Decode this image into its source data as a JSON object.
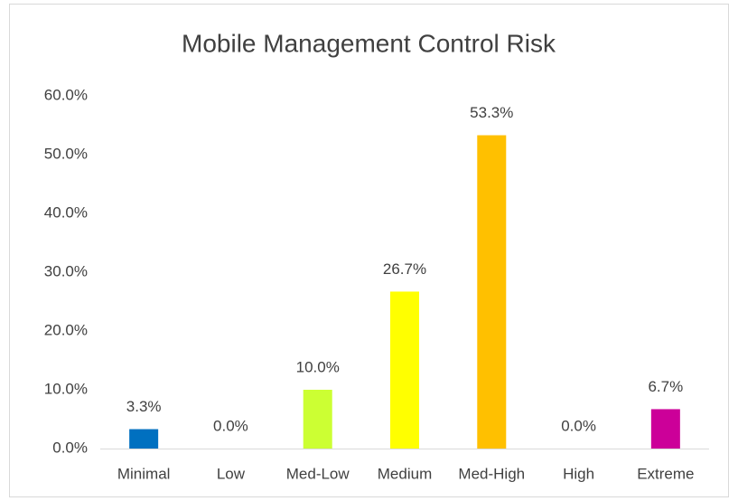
{
  "chart_data": {
    "type": "bar",
    "title": "Mobile Management Control Risk",
    "categories": [
      "Minimal",
      "Low",
      "Med-Low",
      "Medium",
      "Med-High",
      "High",
      "Extreme"
    ],
    "values": [
      3.3,
      0.0,
      10.0,
      26.7,
      53.3,
      0.0,
      6.7
    ],
    "value_labels": [
      "3.3%",
      "0.0%",
      "10.0%",
      "26.7%",
      "53.3%",
      "0.0%",
      "6.7%"
    ],
    "colors": [
      "#0070c0",
      "#00b050",
      "#ccff33",
      "#ffff00",
      "#ffc000",
      "#ff0000",
      "#cc0099"
    ],
    "ylim": [
      0,
      60
    ],
    "yticks": [
      {
        "value": 0,
        "label": "0.0%"
      },
      {
        "value": 10,
        "label": "10.0%"
      },
      {
        "value": 20,
        "label": "20.0%"
      },
      {
        "value": 30,
        "label": "30.0%"
      },
      {
        "value": 40,
        "label": "40.0%"
      },
      {
        "value": 50,
        "label": "50.0%"
      },
      {
        "value": 60,
        "label": "60.0%"
      }
    ],
    "grid": false
  }
}
